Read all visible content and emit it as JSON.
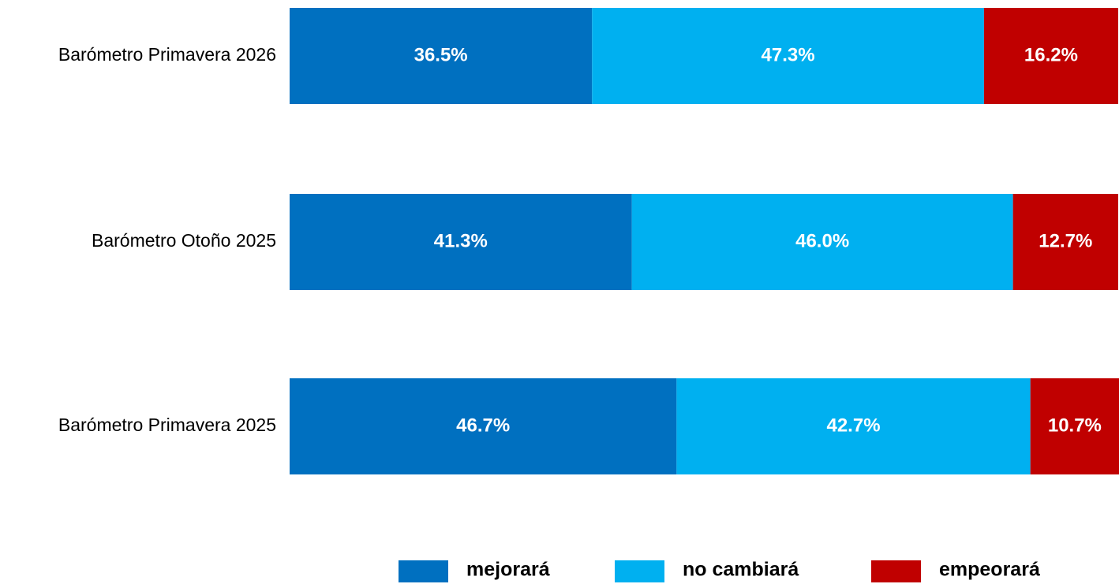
{
  "chart_data": {
    "type": "stacked-bar-horizontal",
    "categories": [
      "Barómetro Primavera 2026",
      "Barómetro Otoño 2025",
      "Barómetro Primavera 2025"
    ],
    "series": [
      {
        "name": "mejorará",
        "color": "#0070c0",
        "values": [
          36.5,
          41.3,
          46.7
        ],
        "value_labels": [
          "36.5%",
          "41.3%",
          "46.7%"
        ]
      },
      {
        "name": "no cambiará",
        "color": "#00b0f0",
        "values": [
          47.3,
          46.0,
          42.7
        ],
        "value_labels": [
          "47.3%",
          "46.0%",
          "42.7%"
        ]
      },
      {
        "name": "empeorará",
        "color": "#c00000",
        "values": [
          16.2,
          12.7,
          10.7
        ],
        "value_labels": [
          "16.2%",
          "12.7%",
          "10.7%"
        ]
      }
    ],
    "xlim": [
      0,
      100
    ],
    "legend": "bottom"
  }
}
